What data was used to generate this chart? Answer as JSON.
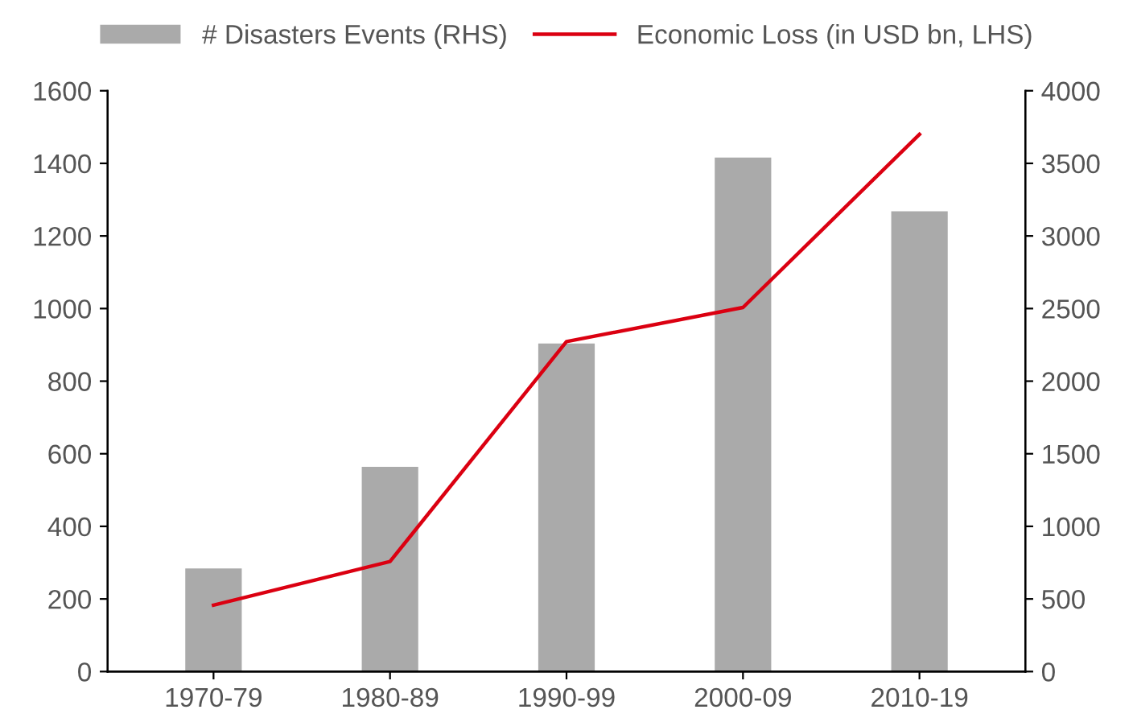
{
  "chart_data": {
    "type": "bar",
    "categories": [
      "1970-79",
      "1980-89",
      "1990-99",
      "2000-09",
      "2010-19"
    ],
    "series": [
      {
        "name": "# Disasters Events (RHS)",
        "axis": "y2",
        "color": "#aaaaaa",
        "values": [
          710,
          1410,
          2260,
          3540,
          3170
        ]
      },
      {
        "name": "Economic Loss (in USD bn, LHS)",
        "type": "line",
        "axis": "y",
        "color": "#db0011",
        "values": [
          183,
          303,
          909,
          1003,
          1480
        ]
      }
    ],
    "ylim": [
      0,
      1600
    ],
    "yticks": [
      0,
      200,
      400,
      600,
      800,
      1000,
      1200,
      1400,
      1600
    ],
    "y2lim": [
      0,
      4000
    ],
    "y2ticks": [
      0,
      500,
      1000,
      1500,
      2000,
      2500,
      3000,
      3500,
      4000
    ],
    "grid": false,
    "legend": "top",
    "marker": "none",
    "line_style": "solid"
  }
}
